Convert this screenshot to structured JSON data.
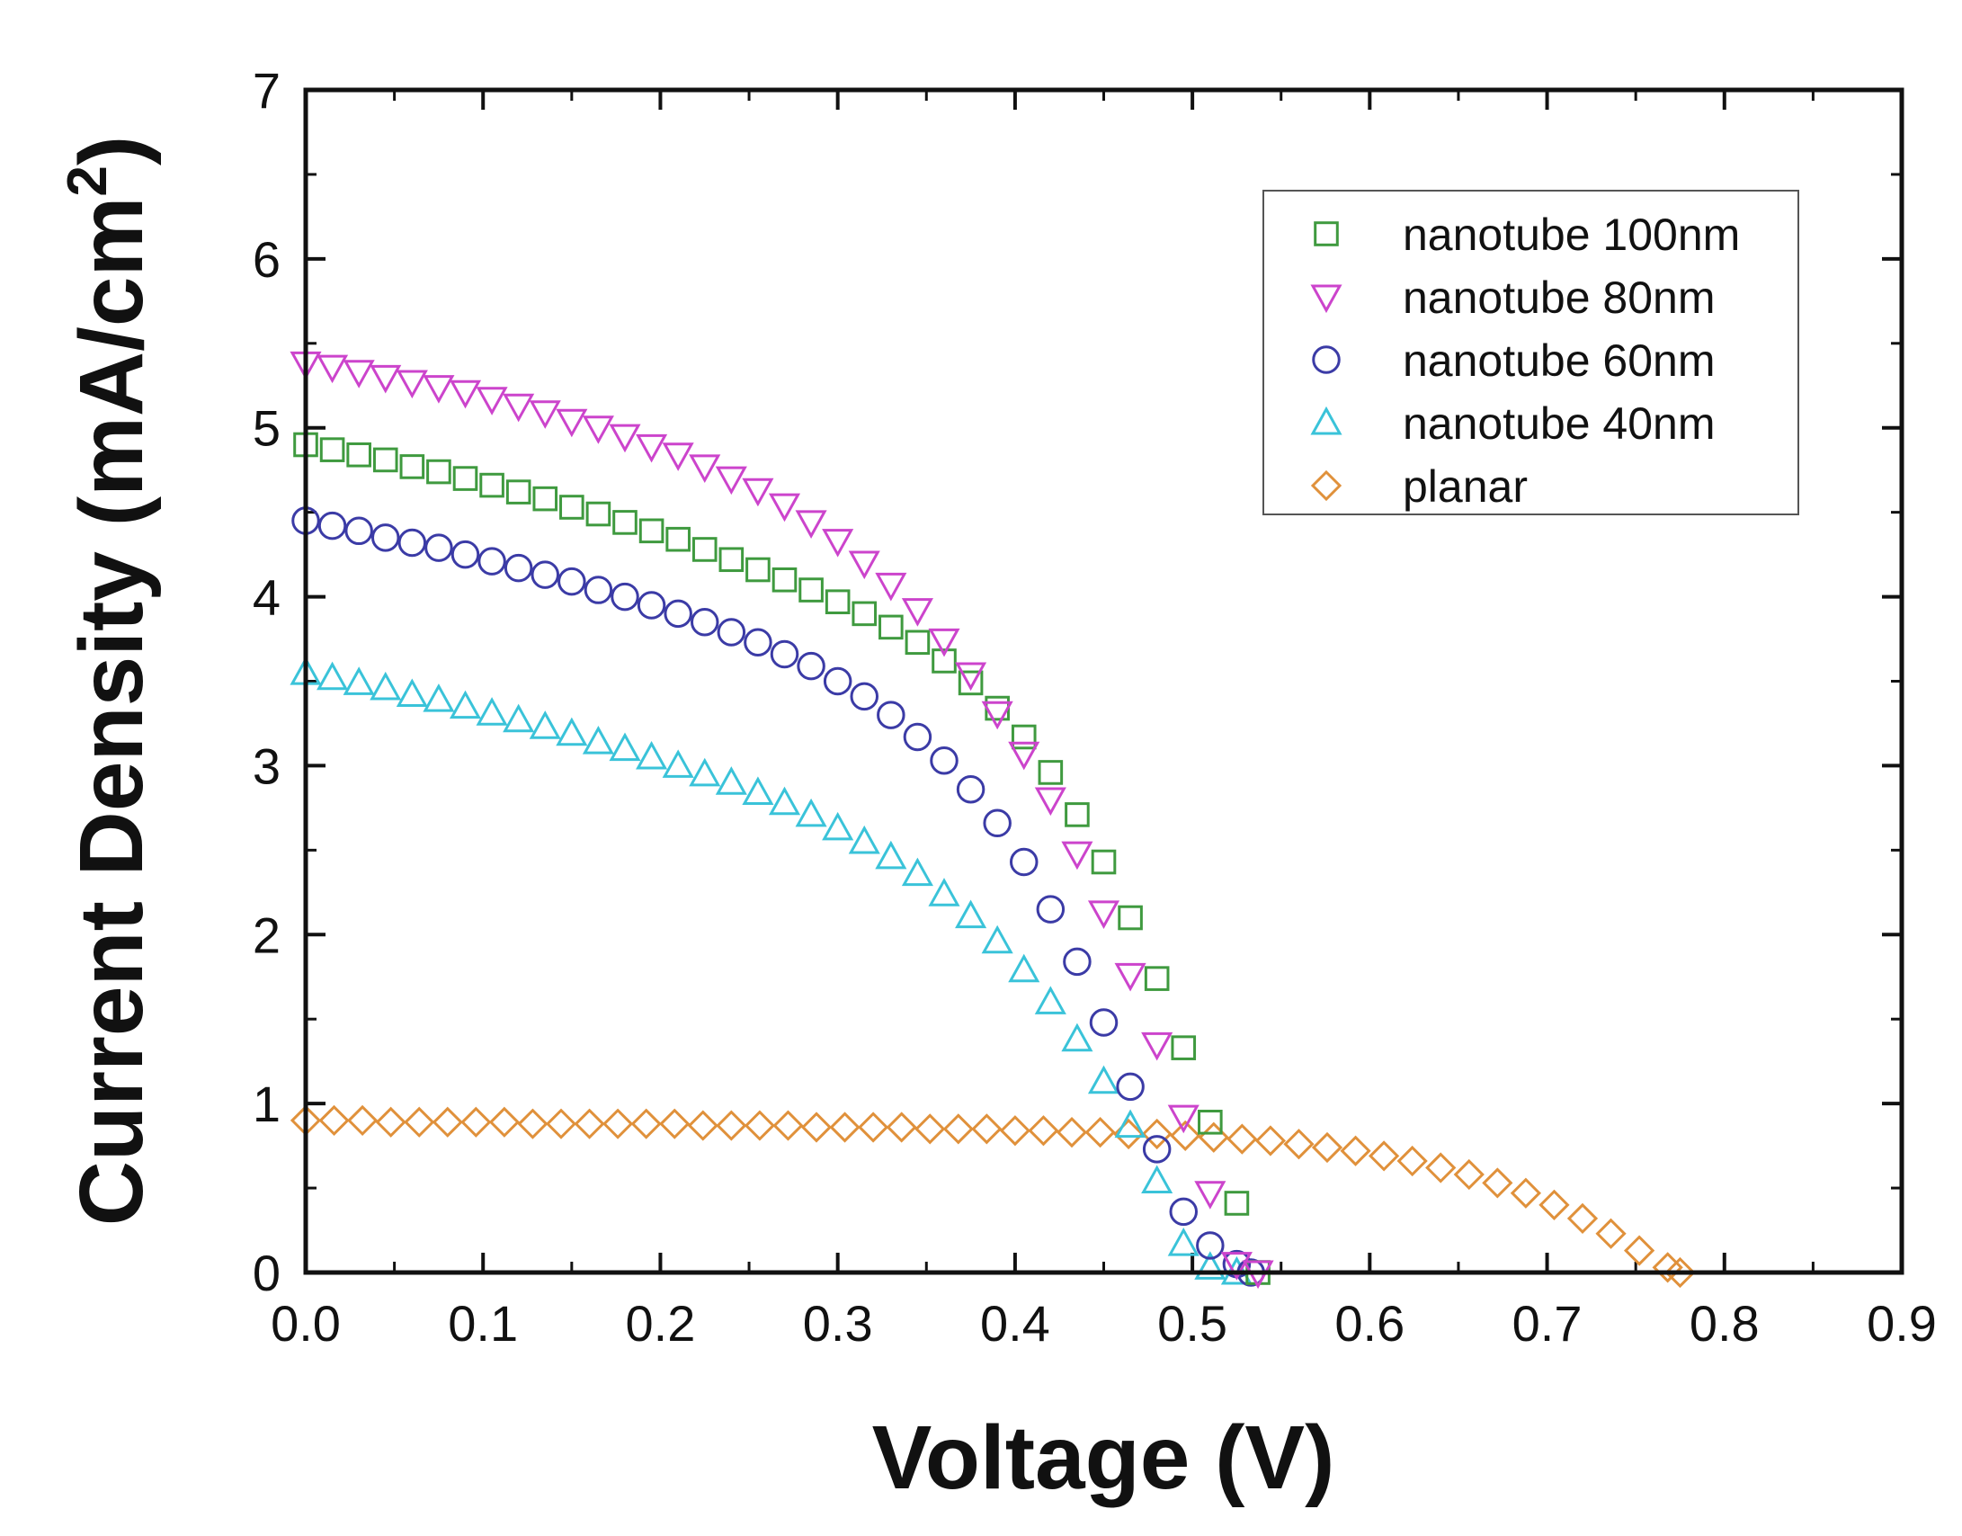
{
  "chart_data": {
    "type": "scatter",
    "title": "",
    "xlabel": "Voltage (V)",
    "ylabel": "Current Density (mA/cm",
    "ylabel_superscript": "2",
    "ylabel_close": ")",
    "xlim": [
      0,
      0.9
    ],
    "ylim": [
      0,
      7
    ],
    "grid": false,
    "legend_position": "top-right",
    "x_ticks": [
      "0.0",
      "0.1",
      "0.2",
      "0.3",
      "0.4",
      "0.5",
      "0.6",
      "0.7",
      "0.8",
      "0.9"
    ],
    "y_ticks": [
      "0",
      "1",
      "2",
      "3",
      "4",
      "5",
      "6",
      "7"
    ],
    "series": [
      {
        "name": "nanotube 100nm",
        "marker": "square",
        "color": "#3f9a3f",
        "x": [
          0.0,
          0.015,
          0.03,
          0.045,
          0.06,
          0.075,
          0.09,
          0.105,
          0.12,
          0.135,
          0.15,
          0.165,
          0.18,
          0.195,
          0.21,
          0.225,
          0.24,
          0.255,
          0.27,
          0.285,
          0.3,
          0.315,
          0.33,
          0.345,
          0.36,
          0.375,
          0.39,
          0.405,
          0.42,
          0.435,
          0.45,
          0.465,
          0.48,
          0.495,
          0.51,
          0.525,
          0.537
        ],
        "y": [
          4.9,
          4.87,
          4.84,
          4.81,
          4.77,
          4.74,
          4.7,
          4.66,
          4.62,
          4.58,
          4.53,
          4.49,
          4.44,
          4.39,
          4.34,
          4.28,
          4.22,
          4.16,
          4.1,
          4.04,
          3.97,
          3.9,
          3.82,
          3.73,
          3.62,
          3.49,
          3.34,
          3.17,
          2.96,
          2.71,
          2.43,
          2.1,
          1.74,
          1.33,
          0.89,
          0.41,
          0.0
        ]
      },
      {
        "name": "nanotube 80nm",
        "marker": "triangle-down",
        "color": "#cc44cc",
        "x": [
          0.0,
          0.015,
          0.03,
          0.045,
          0.06,
          0.075,
          0.09,
          0.105,
          0.12,
          0.135,
          0.15,
          0.165,
          0.18,
          0.195,
          0.21,
          0.225,
          0.24,
          0.255,
          0.27,
          0.285,
          0.3,
          0.315,
          0.33,
          0.345,
          0.36,
          0.375,
          0.39,
          0.405,
          0.42,
          0.435,
          0.45,
          0.465,
          0.48,
          0.495,
          0.51,
          0.525,
          0.537
        ],
        "y": [
          5.38,
          5.36,
          5.33,
          5.3,
          5.27,
          5.24,
          5.21,
          5.17,
          5.13,
          5.09,
          5.04,
          5.0,
          4.95,
          4.89,
          4.84,
          4.77,
          4.7,
          4.63,
          4.54,
          4.44,
          4.33,
          4.2,
          4.07,
          3.92,
          3.74,
          3.54,
          3.31,
          3.07,
          2.8,
          2.48,
          2.13,
          1.76,
          1.35,
          0.92,
          0.47,
          0.05,
          0.0
        ]
      },
      {
        "name": "nanotube 60nm",
        "marker": "circle",
        "color": "#3b3ba6",
        "x": [
          0.0,
          0.015,
          0.03,
          0.045,
          0.06,
          0.075,
          0.09,
          0.105,
          0.12,
          0.135,
          0.15,
          0.165,
          0.18,
          0.195,
          0.21,
          0.225,
          0.24,
          0.255,
          0.27,
          0.285,
          0.3,
          0.315,
          0.33,
          0.345,
          0.36,
          0.375,
          0.39,
          0.405,
          0.42,
          0.435,
          0.45,
          0.465,
          0.48,
          0.495,
          0.51,
          0.525,
          0.533
        ],
        "y": [
          4.45,
          4.42,
          4.39,
          4.35,
          4.32,
          4.29,
          4.25,
          4.21,
          4.17,
          4.13,
          4.09,
          4.04,
          4.0,
          3.95,
          3.9,
          3.85,
          3.79,
          3.73,
          3.66,
          3.59,
          3.5,
          3.41,
          3.3,
          3.17,
          3.03,
          2.86,
          2.66,
          2.43,
          2.15,
          1.84,
          1.48,
          1.1,
          0.73,
          0.36,
          0.16,
          0.05,
          0.0
        ]
      },
      {
        "name": "nanotube 40nm",
        "marker": "triangle-up",
        "color": "#3ac3d9",
        "x": [
          0.0,
          0.015,
          0.03,
          0.045,
          0.06,
          0.075,
          0.09,
          0.105,
          0.12,
          0.135,
          0.15,
          0.165,
          0.18,
          0.195,
          0.21,
          0.225,
          0.24,
          0.255,
          0.27,
          0.285,
          0.3,
          0.315,
          0.33,
          0.345,
          0.36,
          0.375,
          0.39,
          0.405,
          0.42,
          0.435,
          0.45,
          0.465,
          0.48,
          0.495,
          0.51,
          0.525
        ],
        "y": [
          3.55,
          3.52,
          3.49,
          3.46,
          3.42,
          3.39,
          3.35,
          3.31,
          3.27,
          3.23,
          3.19,
          3.14,
          3.1,
          3.05,
          3.0,
          2.95,
          2.9,
          2.84,
          2.78,
          2.71,
          2.63,
          2.55,
          2.46,
          2.36,
          2.24,
          2.11,
          1.96,
          1.79,
          1.6,
          1.38,
          1.13,
          0.87,
          0.54,
          0.17,
          0.03,
          0.0
        ]
      },
      {
        "name": "planar",
        "marker": "diamond",
        "color": "#e0913b",
        "x": [
          0.0,
          0.016,
          0.032,
          0.048,
          0.064,
          0.08,
          0.096,
          0.112,
          0.128,
          0.144,
          0.16,
          0.176,
          0.192,
          0.208,
          0.224,
          0.24,
          0.256,
          0.272,
          0.288,
          0.304,
          0.32,
          0.336,
          0.352,
          0.368,
          0.384,
          0.4,
          0.416,
          0.432,
          0.448,
          0.464,
          0.48,
          0.496,
          0.512,
          0.528,
          0.544,
          0.56,
          0.576,
          0.592,
          0.608,
          0.624,
          0.64,
          0.656,
          0.672,
          0.688,
          0.704,
          0.72,
          0.736,
          0.752,
          0.768,
          0.775
        ],
        "y": [
          0.9,
          0.9,
          0.9,
          0.89,
          0.89,
          0.89,
          0.89,
          0.89,
          0.88,
          0.88,
          0.88,
          0.88,
          0.88,
          0.88,
          0.87,
          0.87,
          0.87,
          0.87,
          0.86,
          0.86,
          0.86,
          0.86,
          0.85,
          0.85,
          0.85,
          0.84,
          0.84,
          0.83,
          0.83,
          0.82,
          0.82,
          0.81,
          0.8,
          0.79,
          0.78,
          0.76,
          0.74,
          0.72,
          0.69,
          0.66,
          0.62,
          0.58,
          0.53,
          0.47,
          0.4,
          0.32,
          0.23,
          0.13,
          0.03,
          0.0
        ]
      }
    ]
  }
}
